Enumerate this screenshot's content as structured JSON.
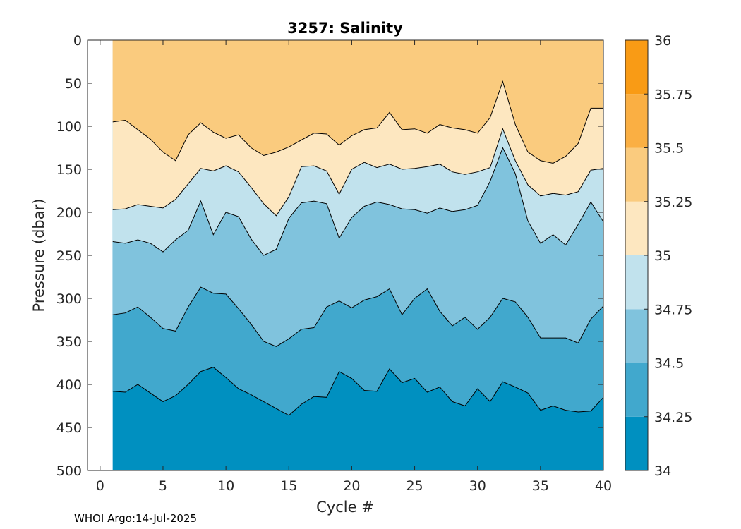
{
  "chart_data": {
    "type": "contour",
    "title": "3257:  Salinity",
    "xlabel": "Cycle #",
    "ylabel": "Pressure (dbar)",
    "xlim": [
      -1,
      40
    ],
    "ylim": [
      0,
      500
    ],
    "y_reversed": true,
    "x_ticks": [
      0,
      5,
      10,
      15,
      20,
      25,
      30,
      35,
      40
    ],
    "y_ticks": [
      0,
      50,
      100,
      150,
      200,
      250,
      300,
      350,
      400,
      450,
      500
    ],
    "data_x_range": [
      1,
      40
    ],
    "levels": [
      34,
      34.25,
      34.5,
      34.75,
      35,
      35.25,
      35.5,
      35.75,
      36
    ],
    "level_colors": [
      "#0090c0",
      "#41a8cd",
      "#80c3dd",
      "#c1e2ed",
      "#fde7c0",
      "#facb7e",
      "#faaf43",
      "#f99b15"
    ],
    "colorbar_tick_labels": [
      "34",
      "34.25",
      "34.5",
      "34.75",
      "35",
      "35.25",
      "35.5",
      "35.75",
      "36"
    ],
    "contours": [
      {
        "level": 34.25,
        "x": [
          1,
          2,
          3,
          4,
          5,
          6,
          7,
          8,
          9,
          10,
          11,
          12,
          13,
          14,
          15,
          16,
          17,
          18,
          19,
          20,
          21,
          22,
          23,
          24,
          25,
          26,
          27,
          28,
          29,
          30,
          31,
          32,
          33,
          34,
          35,
          36,
          37,
          38,
          39,
          40
        ],
        "pressure": [
          408,
          409,
          400,
          410,
          420,
          413,
          400,
          385,
          380,
          392,
          405,
          412,
          420,
          428,
          436,
          423,
          414,
          415,
          385,
          393,
          407,
          408,
          382,
          398,
          393,
          409,
          403,
          420,
          425,
          405,
          420,
          397,
          403,
          410,
          430,
          425,
          430,
          432,
          431,
          415
        ]
      },
      {
        "level": 34.5,
        "x": [
          1,
          2,
          3,
          4,
          5,
          6,
          7,
          8,
          9,
          10,
          11,
          12,
          13,
          14,
          15,
          16,
          17,
          18,
          19,
          20,
          21,
          22,
          23,
          24,
          25,
          26,
          27,
          28,
          29,
          30,
          31,
          32,
          33,
          34,
          35,
          36,
          37,
          38,
          39,
          40
        ],
        "pressure": [
          319,
          317,
          310,
          322,
          335,
          338,
          310,
          287,
          294,
          295,
          312,
          330,
          350,
          356,
          347,
          336,
          334,
          310,
          303,
          311,
          302,
          298,
          289,
          319,
          300,
          289,
          315,
          332,
          322,
          336,
          322,
          300,
          304,
          322,
          346,
          346,
          346,
          352,
          324,
          309
        ]
      },
      {
        "level": 34.75,
        "x": [
          1,
          2,
          3,
          4,
          5,
          6,
          7,
          8,
          9,
          10,
          11,
          12,
          13,
          14,
          15,
          16,
          17,
          18,
          19,
          20,
          21,
          22,
          23,
          24,
          25,
          26,
          27,
          28,
          29,
          30,
          31,
          32,
          33,
          34,
          35,
          36,
          37,
          38,
          39,
          40
        ],
        "pressure": [
          234,
          236,
          232,
          236,
          246,
          232,
          221,
          187,
          226,
          200,
          205,
          231,
          250,
          243,
          207,
          189,
          187,
          190,
          230,
          206,
          193,
          188,
          191,
          196,
          197,
          201,
          195,
          199,
          197,
          192,
          164,
          125,
          155,
          210,
          236,
          226,
          238,
          214,
          188,
          211
        ]
      },
      {
        "level": 35.0,
        "x": [
          1,
          2,
          3,
          4,
          5,
          6,
          7,
          8,
          9,
          10,
          11,
          12,
          13,
          14,
          15,
          16,
          17,
          18,
          19,
          20,
          21,
          22,
          23,
          24,
          25,
          26,
          27,
          28,
          29,
          30,
          31,
          32,
          33,
          34,
          35,
          36,
          37,
          38,
          39,
          40
        ],
        "pressure": [
          197,
          196,
          191,
          193,
          195,
          185,
          167,
          149,
          152,
          146,
          153,
          171,
          190,
          204,
          182,
          147,
          146,
          152,
          179,
          150,
          142,
          148,
          144,
          150,
          149,
          147,
          144,
          153,
          156,
          153,
          148,
          103,
          140,
          168,
          181,
          178,
          180,
          176,
          151,
          149
        ]
      },
      {
        "level": 35.25,
        "x": [
          1,
          2,
          3,
          4,
          5,
          6,
          7,
          8,
          9,
          10,
          11,
          12,
          13,
          14,
          15,
          16,
          17,
          18,
          19,
          20,
          21,
          22,
          23,
          24,
          25,
          26,
          27,
          28,
          29,
          30,
          31,
          32,
          33,
          34,
          35,
          36,
          37,
          38,
          39,
          40
        ],
        "pressure": [
          95,
          93,
          104,
          115,
          130,
          140,
          110,
          96,
          107,
          114,
          110,
          125,
          134,
          130,
          124,
          116,
          108,
          109,
          122,
          111,
          104,
          102,
          84,
          104,
          103,
          108,
          98,
          102,
          104,
          108,
          90,
          48,
          98,
          130,
          140,
          143,
          135,
          120,
          79,
          79
        ]
      }
    ],
    "colorbar_label": "",
    "footer": "WHOI Argo:14-Jul-2025"
  }
}
